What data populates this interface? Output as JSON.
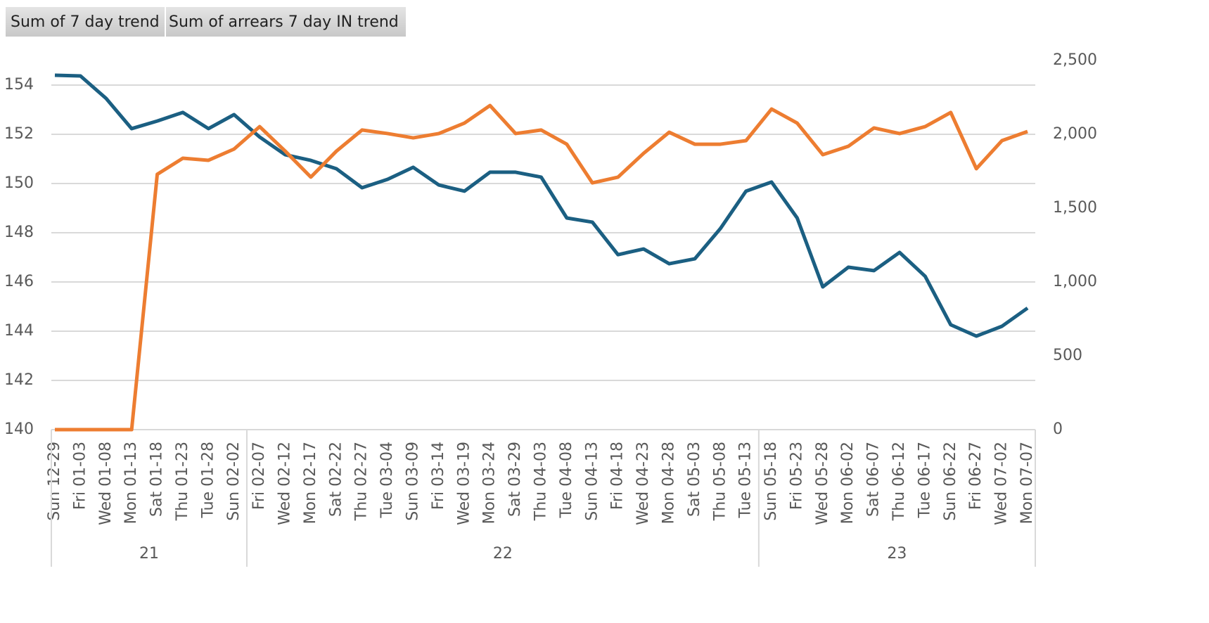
{
  "chart_data": {
    "type": "line",
    "categories": [
      "Sun 12-29",
      "Fri 01-03",
      "Wed 01-08",
      "Mon 01-13",
      "Sat 01-18",
      "Thu 01-23",
      "Tue 01-28",
      "Sun 02-02",
      "Fri 02-07",
      "Wed 02-12",
      "Mon 02-17",
      "Sat 02-22",
      "Thu 02-27",
      "Tue 03-04",
      "Sun 03-09",
      "Fri 03-14",
      "Wed 03-19",
      "Mon 03-24",
      "Sat 03-29",
      "Thu 04-03",
      "Tue 04-08",
      "Sun 04-13",
      "Fri 04-18",
      "Wed 04-23",
      "Mon 04-28",
      "Sat 05-03",
      "Thu 05-08",
      "Tue 05-13",
      "Sun 05-18",
      "Fri 05-23",
      "Wed 05-28",
      "Mon 06-02",
      "Sat 06-07",
      "Thu 06-12",
      "Tue 06-17",
      "Sun 06-22",
      "Fri 06-27",
      "Wed 07-02",
      "Mon 07-07"
    ],
    "groups": [
      {
        "name": "21",
        "count": 8
      },
      {
        "name": "22",
        "count": 20
      },
      {
        "name": "23",
        "count": 11
      }
    ],
    "series": [
      {
        "name": "Sum of 7 day trend",
        "color": "#1b5f82",
        "axis": "y",
        "values": [
          154.4,
          154.37,
          153.46,
          152.23,
          152.54,
          152.89,
          152.23,
          152.8,
          151.89,
          151.17,
          150.94,
          150.6,
          149.83,
          150.17,
          150.66,
          149.94,
          149.69,
          150.46,
          150.46,
          150.26,
          148.6,
          148.43,
          147.11,
          147.34,
          146.74,
          146.94,
          148.17,
          149.69,
          150.06,
          148.6,
          145.8,
          146.6,
          146.46,
          147.2,
          146.23,
          144.26,
          143.8,
          144.2,
          144.94
        ]
      },
      {
        "name": "Sum of arrears 7 day IN trend",
        "color": "#ed7d31",
        "axis": "y2",
        "values": [
          0,
          0,
          0,
          0,
          1729,
          1838,
          1824,
          1900,
          2052,
          1886,
          1710,
          1886,
          2029,
          2005,
          1976,
          2005,
          2076,
          2195,
          2005,
          2029,
          1933,
          1671,
          1710,
          1871,
          2014,
          1933,
          1933,
          1957,
          2171,
          2076,
          1862,
          1919,
          2043,
          2005,
          2052,
          2148,
          1767,
          1957,
          2019
        ]
      }
    ],
    "ylim": [
      140,
      155
    ],
    "yticks": [
      140,
      142,
      144,
      146,
      148,
      150,
      152,
      154
    ],
    "y2lim": [
      0,
      2500
    ],
    "y2ticks": [
      0,
      500,
      {
        "value": 1000,
        "label": "1,000"
      },
      {
        "value": 1500,
        "label": "1,500"
      },
      {
        "value": 2000,
        "label": "2,000"
      },
      {
        "value": 2500,
        "label": "2,500"
      }
    ],
    "grid": true
  }
}
